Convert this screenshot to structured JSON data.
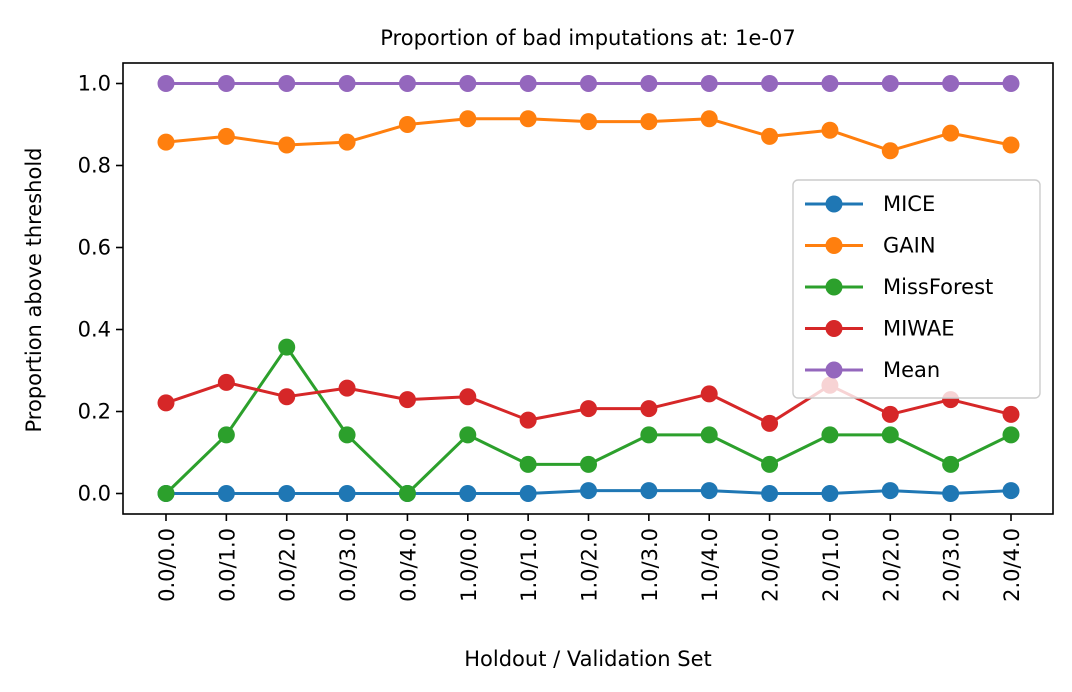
{
  "chart_data": {
    "type": "line",
    "title": "Proportion of bad imputations at: 1e-07",
    "xlabel": "Holdout / Validation Set",
    "ylabel": "Proportion above threshold",
    "ylim": [
      -0.05,
      1.05
    ],
    "yticks": [
      0.0,
      0.2,
      0.4,
      0.6,
      0.8,
      1.0
    ],
    "ytick_labels": [
      "0.0",
      "0.2",
      "0.4",
      "0.6",
      "0.8",
      "1.0"
    ],
    "categories": [
      "0.0/0.0",
      "0.0/1.0",
      "0.0/2.0",
      "0.0/3.0",
      "0.0/4.0",
      "1.0/0.0",
      "1.0/1.0",
      "1.0/2.0",
      "1.0/3.0",
      "1.0/4.0",
      "2.0/0.0",
      "2.0/1.0",
      "2.0/2.0",
      "2.0/3.0",
      "2.0/4.0"
    ],
    "grid": false,
    "legend_position": "center-right",
    "marker": "circle",
    "series": [
      {
        "name": "MICE",
        "color": "#1f77b4",
        "values": [
          0.0,
          0.0,
          0.0,
          0.0,
          0.0,
          0.0,
          0.0,
          0.007,
          0.007,
          0.007,
          0.0,
          0.0,
          0.007,
          0.0,
          0.007
        ]
      },
      {
        "name": "GAIN",
        "color": "#ff7f0e",
        "values": [
          0.857,
          0.871,
          0.85,
          0.857,
          0.9,
          0.914,
          0.914,
          0.907,
          0.907,
          0.914,
          0.871,
          0.886,
          0.836,
          0.879,
          0.85
        ]
      },
      {
        "name": "MissForest",
        "color": "#2ca02c",
        "values": [
          0.0,
          0.143,
          0.357,
          0.143,
          0.0,
          0.143,
          0.071,
          0.071,
          0.143,
          0.143,
          0.071,
          0.143,
          0.143,
          0.071,
          0.143
        ]
      },
      {
        "name": "MIWAE",
        "color": "#d62728",
        "values": [
          0.221,
          0.271,
          0.236,
          0.257,
          0.229,
          0.236,
          0.179,
          0.207,
          0.207,
          0.243,
          0.171,
          0.264,
          0.193,
          0.229,
          0.193
        ]
      },
      {
        "name": "Mean",
        "color": "#9467bd",
        "values": [
          1.0,
          1.0,
          1.0,
          1.0,
          1.0,
          1.0,
          1.0,
          1.0,
          1.0,
          1.0,
          1.0,
          1.0,
          1.0,
          1.0,
          1.0
        ]
      }
    ]
  }
}
